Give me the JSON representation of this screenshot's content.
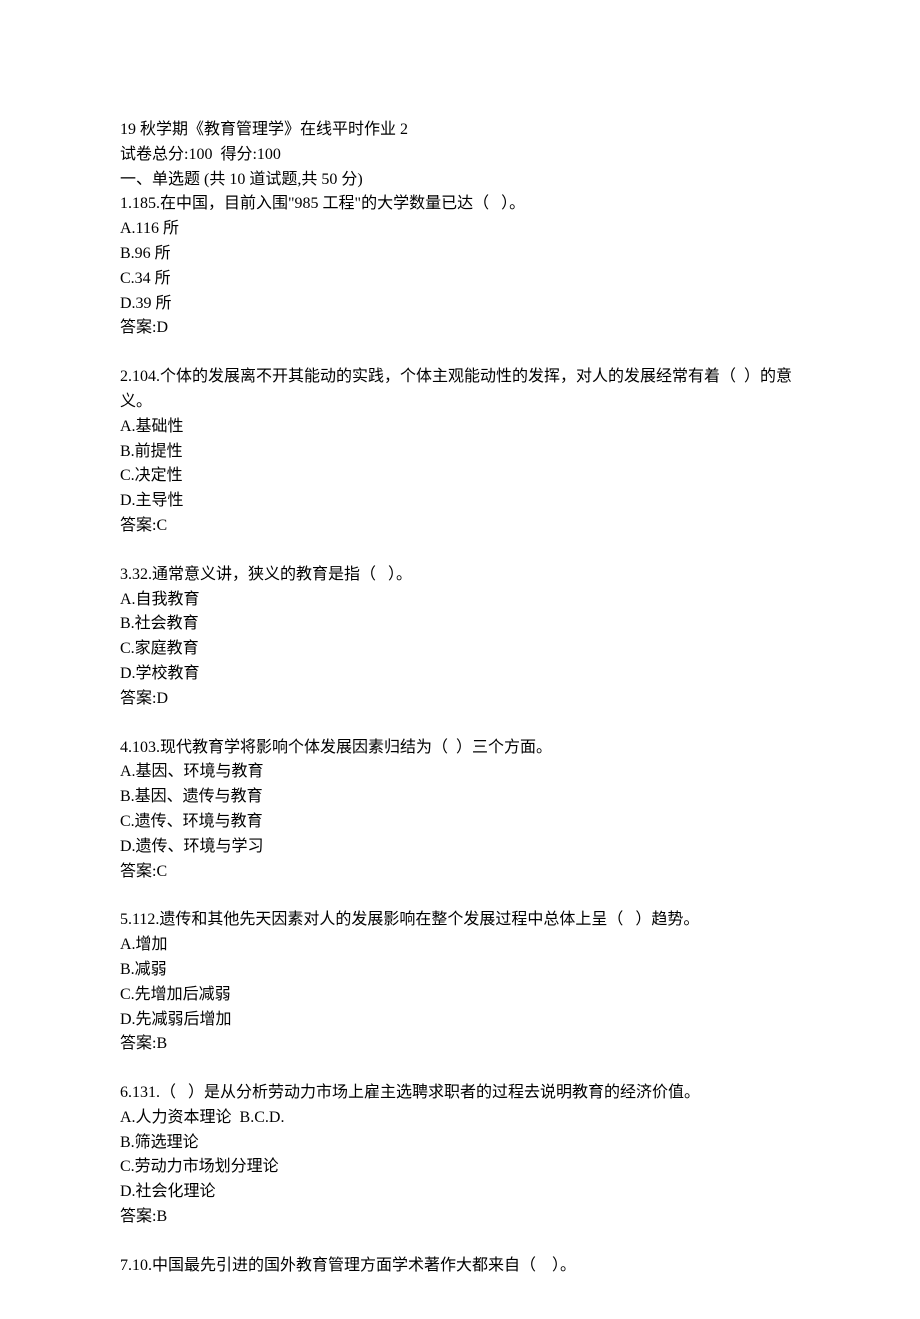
{
  "header": {
    "title": "19 秋学期《教育管理学》在线平时作业 2",
    "scoreline": "试卷总分:100  得分:100",
    "section": "一、单选题 (共 10 道试题,共 50 分)"
  },
  "questions": [
    {
      "stem": "1.185.在中国，目前入围\"985 工程\"的大学数量已达（   ）。",
      "options": [
        "A.116 所",
        "B.96 所",
        "C.34 所",
        "D.39 所"
      ],
      "answer": "答案:D"
    },
    {
      "stem": "2.104.个体的发展离不开其能动的实践，个体主观能动性的发挥，对人的发展经常有着（  ）的意义。",
      "options": [
        "A.基础性",
        "B.前提性",
        "C.决定性",
        "D.主导性"
      ],
      "answer": "答案:C"
    },
    {
      "stem": "3.32.通常意义讲，狭义的教育是指（   ）。",
      "options": [
        "A.自我教育",
        "B.社会教育",
        "C.家庭教育",
        "D.学校教育"
      ],
      "answer": "答案:D"
    },
    {
      "stem": "4.103.现代教育学将影响个体发展因素归结为（  ）三个方面。",
      "options": [
        "A.基因、环境与教育",
        "B.基因、遗传与教育",
        "C.遗传、环境与教育",
        "D.遗传、环境与学习"
      ],
      "answer": "答案:C"
    },
    {
      "stem": "5.112.遗传和其他先天因素对人的发展影响在整个发展过程中总体上呈（   ）趋势。",
      "options": [
        "A.增加",
        "B.减弱",
        "C.先增加后减弱",
        "D.先减弱后增加"
      ],
      "answer": "答案:B"
    },
    {
      "stem": "6.131.（   ）是从分析劳动力市场上雇主选聘求职者的过程去说明教育的经济价值。",
      "options": [
        "A.人力资本理论  B.C.D.",
        "B.筛选理论",
        "C.劳动力市场划分理论",
        "D.社会化理论"
      ],
      "answer": "答案:B"
    },
    {
      "stem": "7.10.中国最先引进的国外教育管理方面学术著作大都来自（    ）。",
      "options": [],
      "answer": ""
    }
  ]
}
